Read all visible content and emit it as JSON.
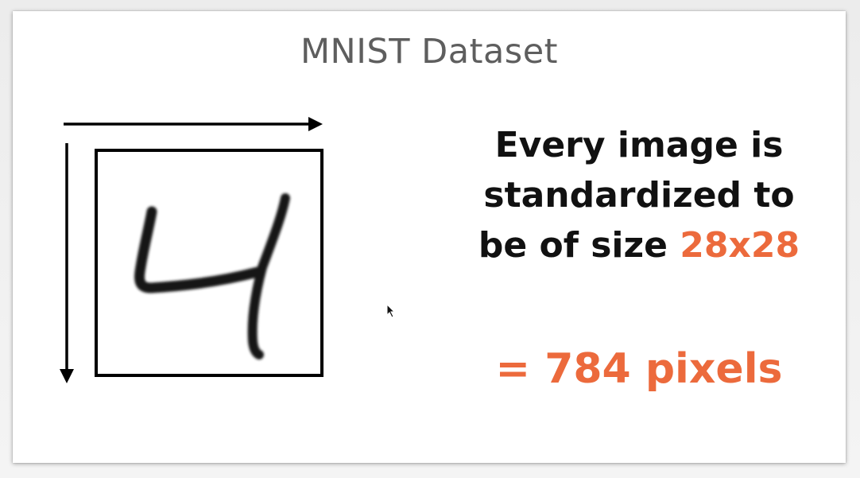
{
  "slide": {
    "title": "MNIST Dataset",
    "body_line1": "Every image is",
    "body_line2": "standardized to",
    "body_line3_prefix": "be of size ",
    "body_line3_highlight": "28x28",
    "result": "= 784 pixels"
  },
  "figure": {
    "digit_icon": "handwritten-digit-four",
    "axis_icons": [
      "arrow-right-icon",
      "arrow-down-icon"
    ]
  },
  "colors": {
    "accent": "#ec6a3c",
    "text": "#111111",
    "title": "#5e5e5e",
    "background": "#ffffff"
  }
}
